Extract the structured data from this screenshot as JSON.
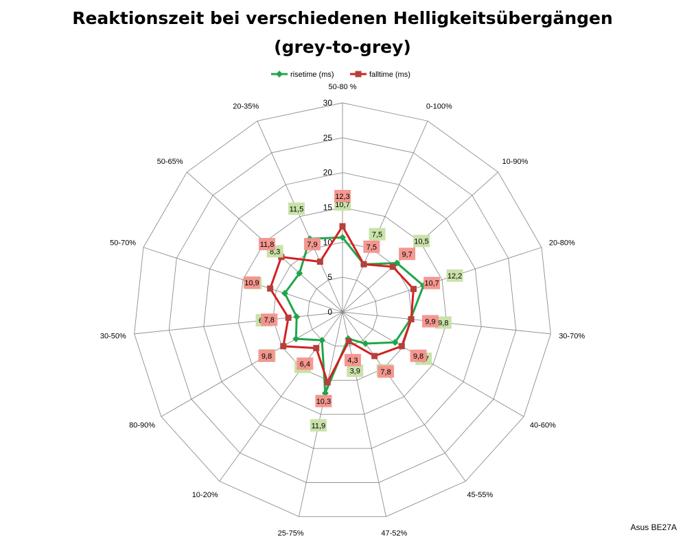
{
  "chart_data": {
    "type": "radar",
    "title_line1": "Reaktionszeit bei verschiedenen Helligkeitsübergängen",
    "title_line2": "(grey-to-grey)",
    "categories": [
      "50-80 %",
      "0-100%",
      "10-90%",
      "20-80%",
      "30-70%",
      "40-60%",
      "45-55%",
      "47-52%",
      "25-75%",
      "10-20%",
      "80-90%",
      "30-50%",
      "50-70%",
      "50-65%",
      "20-35%"
    ],
    "radial_axis": {
      "min": 0,
      "max": 30,
      "ticks": [
        0,
        5,
        10,
        15,
        20,
        25,
        30
      ]
    },
    "legend_position": "top",
    "series": [
      {
        "name": "risetime (ms)",
        "color": "#1fa64a",
        "marker": "diamond",
        "label_bg": "#c6e0a4",
        "values": [
          10.7,
          7.5,
          10.5,
          12.2,
          9.8,
          8.7,
          5.6,
          3.9,
          11.9,
          5.0,
          7.7,
          6.6,
          8.7,
          8.3,
          11.5
        ]
      },
      {
        "name": "falltime (ms)",
        "color": "#d42020",
        "marker": "square",
        "label_bg": "#f4928c",
        "values": [
          12.3,
          7.5,
          9.7,
          10.7,
          9.9,
          9.8,
          7.8,
          4.3,
          10.3,
          6.4,
          9.8,
          7.8,
          10.9,
          11.8,
          7.9
        ]
      }
    ]
  },
  "footer": "Asus BE27A"
}
